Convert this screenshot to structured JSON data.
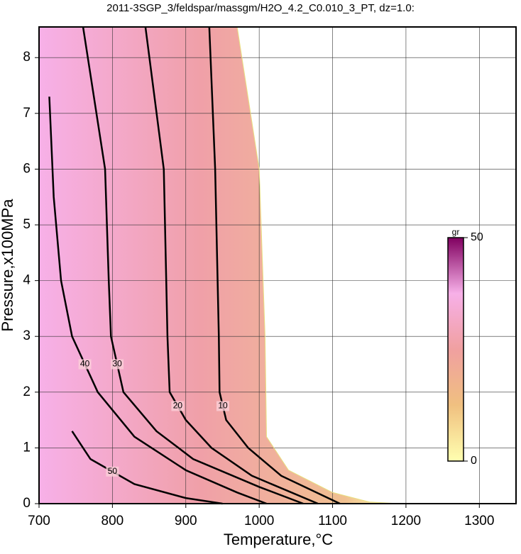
{
  "chart_data": {
    "type": "contour",
    "title": "2011-3SGP_3/feldspar/massgm/H2O_4.2_C0.010_3_PT, dz=1.0:",
    "x_label": "Temperature,°C",
    "y_label": "Pressure,x100MPa",
    "xlim": [
      700,
      1350
    ],
    "ylim": [
      0,
      8.55
    ],
    "xticks": [
      700,
      800,
      900,
      1000,
      1100,
      1200,
      1300
    ],
    "yticks": [
      0,
      1,
      2,
      3,
      4,
      5,
      6,
      7,
      8
    ],
    "grid": true,
    "contours": [
      {
        "level": 0,
        "x": [
          970,
          1000,
          1008,
          1010,
          1040,
          1100,
          1150,
          1190
        ],
        "y": [
          8.55,
          6,
          3,
          1.2,
          0.6,
          0.2,
          0.03,
          0
        ]
      },
      {
        "level": 10,
        "x": [
          932,
          940,
          945,
          946,
          955,
          985,
          1030,
          1110
        ],
        "y": [
          8.55,
          6,
          3,
          2,
          1.5,
          1,
          0.5,
          0
        ]
      },
      {
        "level": 20,
        "x": [
          845,
          870,
          875,
          878,
          900,
          935,
          990,
          1080
        ],
        "y": [
          8.55,
          6,
          3,
          2,
          1.5,
          1,
          0.5,
          0
        ]
      },
      {
        "level": 30,
        "x": [
          760,
          790,
          795,
          798,
          815,
          860,
          910,
          1000,
          1060
        ],
        "y": [
          8.55,
          6,
          4,
          3,
          2,
          1.3,
          0.8,
          0.3,
          0
        ]
      },
      {
        "level": 40,
        "x": [
          714,
          720,
          730,
          745,
          780,
          830,
          900,
          970,
          1010
        ],
        "y": [
          7.3,
          5.5,
          4,
          3,
          2,
          1.2,
          0.6,
          0.2,
          0
        ]
      },
      {
        "level": 50,
        "x": [
          745,
          770,
          830,
          900,
          950
        ],
        "y": [
          1.3,
          0.8,
          0.35,
          0.1,
          0
        ]
      }
    ],
    "colorbar": {
      "label": "gr",
      "clim": [
        0,
        50
      ],
      "cticks": [
        0,
        50
      ],
      "colors": [
        "#ffffb0",
        "#f0c080",
        "#f0a0a0",
        "#f7b0e8",
        "#800060"
      ]
    }
  }
}
